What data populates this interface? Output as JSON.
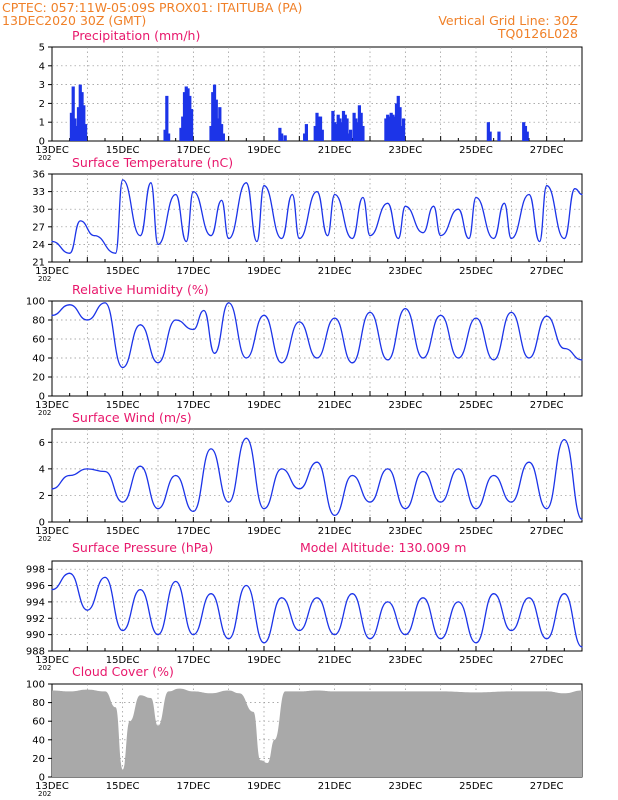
{
  "header": {
    "line1": "CPTEC:   057:11W-05:09S   PROX01: ITAITUBA (PA)",
    "line2_left": "13DEC2020 30Z (GMT)",
    "line2_right": "Vertical Grid Line: 30Z",
    "line3_right": "TQ0126L028"
  },
  "colors": {
    "header": "#f08028",
    "title": "#e8186c",
    "series": "#1c34e8",
    "cloud": "#a9a9a9"
  },
  "x_axis": {
    "ticks": [
      "13DEC",
      "15DEC",
      "17DEC",
      "19DEC",
      "21DEC",
      "23DEC",
      "25DEC",
      "27DEC"
    ],
    "year_mark": "202"
  },
  "chart_data": [
    {
      "type": "bar",
      "title": "Precipitation (mm/h)",
      "ylim": [
        0,
        5
      ],
      "yticks": [
        "0",
        "1",
        "2",
        "3",
        "4",
        "5"
      ],
      "x_unit": "day of December 2020 (13.0 = 13DEC 00Z)",
      "grid": true,
      "x": [
        13.55,
        13.6,
        13.65,
        13.7,
        13.75,
        13.8,
        13.85,
        13.9,
        13.95,
        16.2,
        16.25,
        16.3,
        16.65,
        16.7,
        16.75,
        16.8,
        16.85,
        16.9,
        16.95,
        17.5,
        17.55,
        17.6,
        17.65,
        17.7,
        17.75,
        17.8,
        17.85,
        19.45,
        19.5,
        19.6,
        20.15,
        20.2,
        20.45,
        20.5,
        20.55,
        20.6,
        20.65,
        20.95,
        21.0,
        21.05,
        21.1,
        21.15,
        21.2,
        21.25,
        21.3,
        21.35,
        21.4,
        21.45,
        21.55,
        21.6,
        21.65,
        21.7,
        21.75,
        21.8,
        22.45,
        22.5,
        22.55,
        22.6,
        22.65,
        22.7,
        22.75,
        22.8,
        22.85,
        22.9,
        22.95,
        25.35,
        25.4,
        25.65,
        26.35,
        26.4,
        26.45
      ],
      "values": [
        1.5,
        2.9,
        1.2,
        0.8,
        1.8,
        3.0,
        2.6,
        1.9,
        0.9,
        0.6,
        2.4,
        0.4,
        0.7,
        1.3,
        2.6,
        2.9,
        2.8,
        2.4,
        1.7,
        0.8,
        2.6,
        3.0,
        2.2,
        1.2,
        1.8,
        0.9,
        0.4,
        0.7,
        0.4,
        0.3,
        0.4,
        0.9,
        0.8,
        1.5,
        1.3,
        1.3,
        0.6,
        1.6,
        1.0,
        0.9,
        1.4,
        1.2,
        1.0,
        1.6,
        1.4,
        1.2,
        0.4,
        0.6,
        1.5,
        1.2,
        1.0,
        1.9,
        1.5,
        0.8,
        1.2,
        1.4,
        1.3,
        1.5,
        1.4,
        1.3,
        2.0,
        2.4,
        1.8,
        0.8,
        1.2,
        1.0,
        0.5,
        0.5,
        1.0,
        0.8,
        0.5
      ]
    },
    {
      "type": "line",
      "title": "Surface Temperature (nC)",
      "ylim": [
        21,
        36
      ],
      "yticks": [
        "21",
        "24",
        "27",
        "30",
        "33",
        "36"
      ],
      "grid": true,
      "x": [
        13.0,
        13.5,
        13.8,
        14.2,
        14.8,
        15.0,
        15.5,
        15.8,
        16.0,
        16.5,
        16.8,
        17.0,
        17.5,
        17.8,
        18.0,
        18.5,
        18.8,
        19.0,
        19.5,
        19.8,
        20.0,
        20.5,
        20.8,
        21.0,
        21.5,
        21.8,
        22.0,
        22.5,
        22.8,
        23.0,
        23.5,
        23.8,
        24.0,
        24.5,
        24.8,
        25.0,
        25.5,
        25.8,
        26.0,
        26.5,
        26.8,
        27.0,
        27.5,
        27.8,
        28.0
      ],
      "values": [
        24.5,
        22.5,
        28.0,
        25.5,
        22.5,
        35.0,
        25.5,
        34.5,
        24.0,
        32.5,
        24.5,
        33.0,
        25.5,
        31.5,
        25.0,
        34.5,
        24.5,
        34.0,
        25.0,
        32.5,
        25.0,
        33.0,
        25.5,
        32.5,
        25.0,
        32.0,
        25.5,
        31.0,
        25.0,
        30.5,
        26.0,
        30.5,
        25.5,
        30.0,
        25.0,
        32.0,
        25.0,
        31.0,
        25.0,
        32.5,
        24.5,
        34.0,
        25.0,
        33.5,
        32.5
      ]
    },
    {
      "type": "line",
      "title": "Relative Humidity (%)",
      "ylim": [
        0,
        100
      ],
      "yticks": [
        "0",
        "20",
        "40",
        "60",
        "80",
        "100"
      ],
      "grid": true,
      "x": [
        13.0,
        13.5,
        14.0,
        14.5,
        15.0,
        15.5,
        16.0,
        16.5,
        17.0,
        17.3,
        17.6,
        18.0,
        18.5,
        19.0,
        19.5,
        20.0,
        20.5,
        21.0,
        21.5,
        22.0,
        22.5,
        23.0,
        23.5,
        24.0,
        24.5,
        25.0,
        25.5,
        26.0,
        26.5,
        27.0,
        27.5,
        28.0
      ],
      "values": [
        85,
        96,
        80,
        98,
        30,
        75,
        35,
        80,
        70,
        90,
        45,
        98,
        40,
        85,
        35,
        78,
        40,
        82,
        35,
        88,
        38,
        92,
        40,
        85,
        40,
        82,
        38,
        88,
        40,
        84,
        50,
        38
      ]
    },
    {
      "type": "line",
      "title": "Surface Wind (m/s)",
      "ylim": [
        0,
        7
      ],
      "yticks": [
        "0",
        "2",
        "4",
        "6"
      ],
      "grid": true,
      "x": [
        13.0,
        13.5,
        14.0,
        14.5,
        15.0,
        15.5,
        16.0,
        16.5,
        17.0,
        17.5,
        18.0,
        18.5,
        19.0,
        19.5,
        20.0,
        20.5,
        21.0,
        21.5,
        22.0,
        22.5,
        23.0,
        23.5,
        24.0,
        24.5,
        25.0,
        25.5,
        26.0,
        26.5,
        27.0,
        27.5,
        28.0
      ],
      "values": [
        2.5,
        3.5,
        4.0,
        3.8,
        1.5,
        4.2,
        1.0,
        3.5,
        0.8,
        5.5,
        1.5,
        6.3,
        1.0,
        4.0,
        2.5,
        4.5,
        0.5,
        3.5,
        1.5,
        4.0,
        1.0,
        3.8,
        1.5,
        4.0,
        1.0,
        3.5,
        1.5,
        4.5,
        1.0,
        6.2,
        0.2
      ]
    },
    {
      "type": "line",
      "title": "Surface Pressure (hPa)",
      "annotation": "Model Altitude: 130.009 m",
      "ylim": [
        988,
        999
      ],
      "yticks": [
        "988",
        "990",
        "992",
        "994",
        "996",
        "998"
      ],
      "grid": true,
      "x": [
        13.0,
        13.5,
        14.0,
        14.5,
        15.0,
        15.5,
        16.0,
        16.5,
        17.0,
        17.5,
        18.0,
        18.5,
        19.0,
        19.5,
        20.0,
        20.5,
        21.0,
        21.5,
        22.0,
        22.5,
        23.0,
        23.5,
        24.0,
        24.5,
        25.0,
        25.5,
        26.0,
        26.5,
        27.0,
        27.5,
        28.0
      ],
      "values": [
        995.5,
        997.5,
        993.0,
        997.0,
        990.5,
        995.5,
        990.0,
        996.5,
        990.0,
        995.0,
        989.5,
        996.0,
        989.0,
        994.5,
        990.5,
        994.5,
        990.0,
        995.0,
        989.5,
        994.0,
        990.0,
        994.5,
        989.5,
        994.0,
        989.0,
        995.0,
        990.5,
        994.5,
        989.5,
        995.0,
        988.5
      ]
    },
    {
      "type": "area",
      "title": "Cloud Cover (%)",
      "ylim": [
        0,
        100
      ],
      "yticks": [
        "0",
        "20",
        "40",
        "60",
        "80",
        "100"
      ],
      "grid": true,
      "x": [
        13.0,
        13.5,
        14.0,
        14.5,
        14.8,
        15.0,
        15.2,
        15.5,
        15.8,
        16.0,
        16.3,
        16.6,
        17.0,
        17.5,
        18.0,
        18.3,
        18.7,
        18.9,
        19.1,
        19.3,
        19.6,
        20.0,
        20.5,
        21.0,
        22.0,
        23.0,
        24.0,
        25.0,
        26.0,
        27.0,
        27.5,
        28.0
      ],
      "values": [
        93,
        92,
        94,
        92,
        75,
        8,
        60,
        88,
        85,
        55,
        92,
        95,
        92,
        90,
        93,
        90,
        70,
        18,
        15,
        40,
        92,
        92,
        93,
        92,
        92,
        92,
        92,
        91,
        92,
        92,
        90,
        93
      ]
    }
  ]
}
